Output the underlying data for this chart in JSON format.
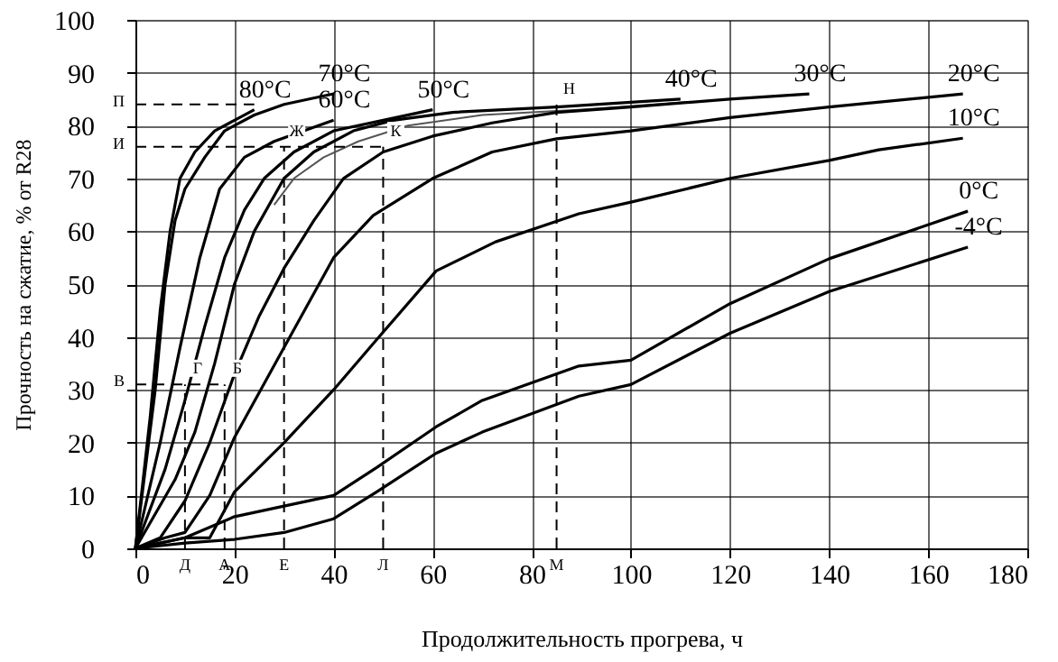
{
  "chart_data": {
    "type": "line",
    "xlabel": "Продолжительность прогрева, ч",
    "ylabel": "Прочность на сжатие, % от R28",
    "xlim": [
      0,
      180
    ],
    "xticks": [
      0,
      20,
      40,
      60,
      80,
      100,
      120,
      140,
      160,
      180
    ],
    "ylim": [
      0,
      100
    ],
    "yticks": [
      0,
      10,
      20,
      30,
      40,
      50,
      60,
      70,
      80,
      90,
      100
    ],
    "grid": true,
    "legend": false,
    "marker": "none",
    "line_style": "solid",
    "series": [
      {
        "name": "80°C",
        "color": "#000000",
        "x": [
          0,
          3,
          5,
          7,
          9,
          12,
          16,
          20,
          24
        ],
        "values": [
          0,
          25,
          45,
          60,
          70,
          75,
          79,
          81,
          83
        ]
      },
      {
        "name": "70°C",
        "color": "#000000",
        "x": [
          0,
          4,
          6,
          8,
          10,
          14,
          18,
          24,
          30,
          40
        ],
        "values": [
          0,
          30,
          50,
          62,
          68,
          74,
          79,
          82,
          84,
          86
        ]
      },
      {
        "name": "60°C",
        "color": "#000000",
        "x": [
          0,
          5,
          9,
          13,
          17,
          22,
          28,
          34,
          40
        ],
        "values": [
          0,
          20,
          38,
          55,
          68,
          74,
          77,
          79,
          81
        ]
      },
      {
        "name": "50°C",
        "color": "#000000",
        "x": [
          0,
          6,
          10,
          14,
          18,
          22,
          26,
          32,
          40,
          50,
          60
        ],
        "values": [
          0,
          15,
          28,
          42,
          55,
          64,
          70,
          75,
          79,
          81,
          83
        ]
      },
      {
        "name": "40°C",
        "color": "#000000",
        "x": [
          0,
          8,
          12,
          16,
          20,
          24,
          30,
          36,
          44,
          52,
          64,
          85,
          110
        ],
        "values": [
          0,
          13,
          22,
          35,
          50,
          60,
          70,
          75,
          79,
          81,
          82.5,
          83.5,
          85
        ]
      },
      {
        "color": "#555555",
        "x": [
          28,
          32,
          38,
          45,
          55,
          70,
          90,
          112
        ],
        "values": [
          65,
          70,
          74,
          77,
          80,
          82,
          83,
          84.5
        ]
      },
      {
        "name": "30°C",
        "color": "#000000",
        "x": [
          0,
          5,
          10,
          15,
          20,
          25,
          30,
          36,
          42,
          50,
          60,
          72,
          85,
          100,
          120,
          136
        ],
        "values": [
          0,
          2,
          9,
          20,
          33,
          44,
          53,
          62,
          70,
          75,
          78,
          80.5,
          82.5,
          83.5,
          85,
          86
        ]
      },
      {
        "name": "20°C",
        "color": "#000000",
        "x": [
          0,
          6,
          10,
          15,
          20,
          30,
          40,
          48,
          60,
          72,
          85,
          100,
          120,
          140,
          167
        ],
        "values": [
          0,
          2,
          3,
          10,
          21,
          38,
          55,
          63,
          70,
          75,
          77.5,
          79,
          81.5,
          83.5,
          86
        ]
      },
      {
        "name": "10°C",
        "color": "#000000",
        "x": [
          0,
          5,
          10,
          15,
          20,
          30,
          40,
          48.7,
          60.7,
          72.7,
          89.5,
          100,
          120,
          140,
          150,
          167
        ],
        "values": [
          0,
          1,
          2,
          2,
          10.7,
          20,
          30,
          39.5,
          52.5,
          58,
          63.3,
          65.5,
          70,
          73.4,
          75.4,
          77.6
        ]
      },
      {
        "name": "0°C",
        "color": "#000000",
        "x": [
          0,
          10,
          20,
          30,
          40,
          48.7,
          60.7,
          70,
          89.5,
          100,
          120,
          140,
          168
        ],
        "values": [
          0,
          2,
          6,
          8,
          10,
          15.3,
          23,
          28,
          34.5,
          35.6,
          46.3,
          54.8,
          63.8
        ]
      },
      {
        "name": "-4°C",
        "color": "#000000",
        "x": [
          0,
          10,
          20,
          30,
          40,
          48.7,
          60.7,
          70,
          89.5,
          100,
          120,
          140,
          168
        ],
        "values": [
          0,
          1,
          1.7,
          3,
          5.6,
          10.7,
          18,
          22,
          28.8,
          31,
          40.7,
          48.6,
          57
        ]
      },
      {
        "color": "#000000",
        "line_style": "dashed",
        "x": [
          0,
          24
        ],
        "values": [
          84,
          84
        ]
      },
      {
        "color": "#000000",
        "line_style": "dashed",
        "x": [
          0,
          50
        ],
        "values": [
          76,
          76
        ]
      },
      {
        "color": "#000000",
        "line_style": "dashed",
        "x": [
          0,
          18
        ],
        "values": [
          31,
          31
        ]
      },
      {
        "color": "#000000",
        "line_style": "dashed",
        "x": [
          10,
          10
        ],
        "values": [
          0,
          31
        ]
      },
      {
        "color": "#000000",
        "line_style": "dashed",
        "x": [
          18,
          18
        ],
        "values": [
          0,
          31
        ]
      },
      {
        "color": "#000000",
        "line_style": "dashed",
        "x": [
          30,
          30
        ],
        "values": [
          0,
          76
        ]
      },
      {
        "color": "#000000",
        "line_style": "dashed",
        "x": [
          50,
          50
        ],
        "values": [
          0,
          76
        ]
      },
      {
        "color": "#000000",
        "line_style": "dashed",
        "x": [
          85,
          85
        ],
        "values": [
          0,
          84
        ]
      }
    ],
    "annotations": [
      {
        "text": "П",
        "x": 0,
        "y": 84
      },
      {
        "text": "И",
        "x": 0,
        "y": 76
      },
      {
        "text": "В",
        "x": 0,
        "y": 31
      },
      {
        "text": "Г",
        "x": 10,
        "y": 31
      },
      {
        "text": "Б",
        "x": 18,
        "y": 31
      },
      {
        "text": "Ж",
        "x": 30,
        "y": 76
      },
      {
        "text": "К",
        "x": 50,
        "y": 76
      },
      {
        "text": "Н",
        "x": 85,
        "y": 84
      },
      {
        "text": "Д",
        "x": 10,
        "y": 0
      },
      {
        "text": "А",
        "x": 18,
        "y": 0
      },
      {
        "text": "Е",
        "x": 30,
        "y": 0
      },
      {
        "text": "Л",
        "x": 50,
        "y": 0
      },
      {
        "text": "М",
        "x": 85,
        "y": 0
      }
    ]
  }
}
